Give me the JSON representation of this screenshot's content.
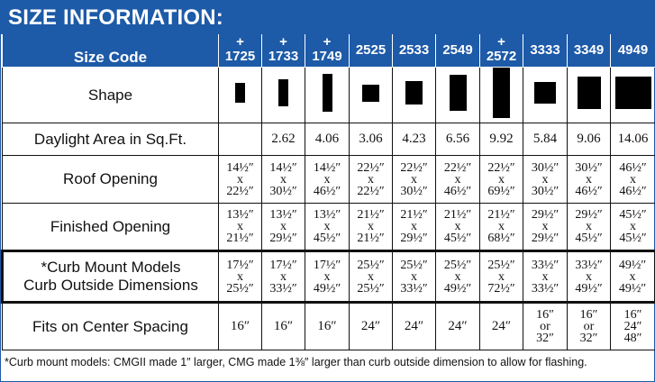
{
  "title": "SIZE INFORMATION:",
  "header": {
    "label": "Size Code",
    "codes": [
      {
        "plus": "+",
        "code": "1725"
      },
      {
        "plus": "+",
        "code": "1733"
      },
      {
        "plus": "+",
        "code": "1749"
      },
      {
        "plus": "",
        "code": "2525"
      },
      {
        "plus": "",
        "code": "2533"
      },
      {
        "plus": "",
        "code": "2549"
      },
      {
        "plus": "+",
        "code": "2572"
      },
      {
        "plus": "",
        "code": "3333"
      },
      {
        "plus": "",
        "code": "3349"
      },
      {
        "plus": "",
        "code": "4949"
      }
    ]
  },
  "rows": {
    "shape": {
      "label": "Shape"
    },
    "daylight": {
      "label": "Daylight Area in Sq.Ft.",
      "values": [
        "",
        "2.62",
        "4.06",
        "3.06",
        "4.23",
        "6.56",
        "9.92",
        "5.84",
        "9.06",
        "14.06"
      ]
    },
    "roof": {
      "label": "Roof Opening",
      "values": [
        [
          "14½″",
          "x",
          "22½″"
        ],
        [
          "14½″",
          "x",
          "30½″"
        ],
        [
          "14½″",
          "x",
          "46½″"
        ],
        [
          "22½″",
          "x",
          "22½″"
        ],
        [
          "22½″",
          "x",
          "30½″"
        ],
        [
          "22½″",
          "x",
          "46½″"
        ],
        [
          "22½″",
          "x",
          "69½″"
        ],
        [
          "30½″",
          "x",
          "30½″"
        ],
        [
          "30½″",
          "x",
          "46½″"
        ],
        [
          "46½″",
          "x",
          "46½″"
        ]
      ]
    },
    "finished": {
      "label": "Finished Opening",
      "values": [
        [
          "13½″",
          "x",
          "21½″"
        ],
        [
          "13½″",
          "x",
          "29½″"
        ],
        [
          "13½″",
          "x",
          "45½″"
        ],
        [
          "21½″",
          "x",
          "21½″"
        ],
        [
          "21½″",
          "x",
          "29½″"
        ],
        [
          "21½″",
          "x",
          "45½″"
        ],
        [
          "21½″",
          "x",
          "68½″"
        ],
        [
          "29½″",
          "x",
          "29½″"
        ],
        [
          "29½″",
          "x",
          "45½″"
        ],
        [
          "45½″",
          "x",
          "45½″"
        ]
      ]
    },
    "curb": {
      "label_line1": "*Curb Mount Models",
      "label_line2": "Curb Outside Dimensions",
      "values": [
        [
          "17½″",
          "x",
          "25½″"
        ],
        [
          "17½″",
          "x",
          "33½″"
        ],
        [
          "17½″",
          "x",
          "49½″"
        ],
        [
          "25½″",
          "x",
          "25½″"
        ],
        [
          "25½″",
          "x",
          "33½″"
        ],
        [
          "25½″",
          "x",
          "49½″"
        ],
        [
          "25½″",
          "x",
          "72½″"
        ],
        [
          "33½″",
          "x",
          "33½″"
        ],
        [
          "33½″",
          "x",
          "49½″"
        ],
        [
          "49½″",
          "x",
          "49½″"
        ]
      ]
    },
    "spacing": {
      "label": "Fits on Center Spacing",
      "values": [
        [
          "16″"
        ],
        [
          "16″"
        ],
        [
          "16″"
        ],
        [
          "24″"
        ],
        [
          "24″"
        ],
        [
          "24″"
        ],
        [
          "24″"
        ],
        [
          "16″",
          "or",
          "32″"
        ],
        [
          "16″",
          "or",
          "32″"
        ],
        [
          "16″",
          "24″",
          "48″"
        ]
      ]
    }
  },
  "footnote": "*Curb mount models: CMGII made 1″ larger, CMG made 1⅜″ larger than curb outside dimension to allow for flashing."
}
